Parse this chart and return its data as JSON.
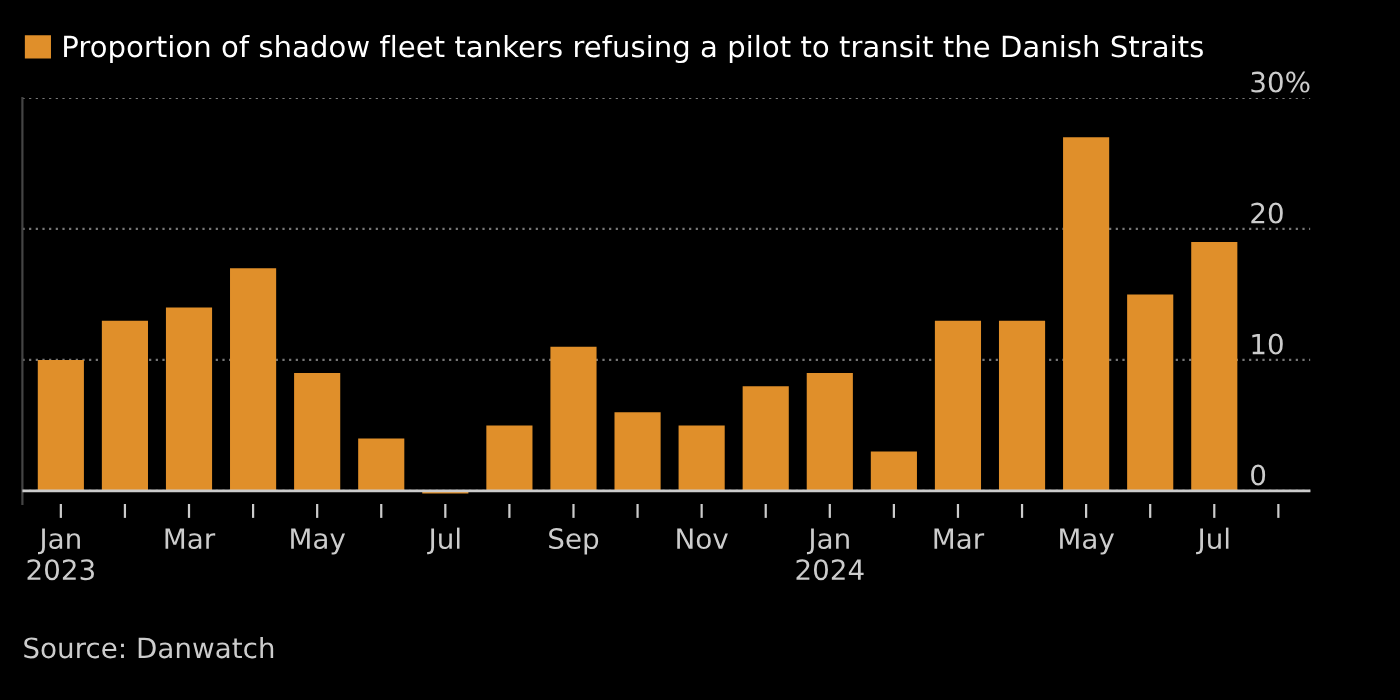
{
  "chart_data": {
    "type": "bar",
    "series": [
      {
        "name": "Proportion of shadow fleet tankers refusing a pilot to transit the Danish Straits",
        "color": "#e08f2a",
        "values": [
          10,
          13,
          14,
          17,
          9,
          4,
          -0.2,
          5,
          11,
          6,
          5,
          8,
          9,
          3,
          13,
          13,
          27,
          15,
          19,
          null
        ]
      }
    ],
    "categories": [
      "Jan\n2023",
      null,
      "Mar",
      null,
      "May",
      null,
      "Jul",
      null,
      "Sep",
      null,
      "Nov",
      null,
      "Jan\n2024",
      null,
      "Mar",
      null,
      "May",
      null,
      "Jul",
      null
    ],
    "ylim": [
      -1,
      30
    ],
    "yticks": [
      {
        "value": 0,
        "label": "0"
      },
      {
        "value": 10,
        "label": "10"
      },
      {
        "value": 20,
        "label": "20"
      },
      {
        "value": 30,
        "label": "30%"
      }
    ],
    "grid": "y",
    "legend": "top left",
    "annotations": [
      "Source: Danwatch"
    ]
  }
}
